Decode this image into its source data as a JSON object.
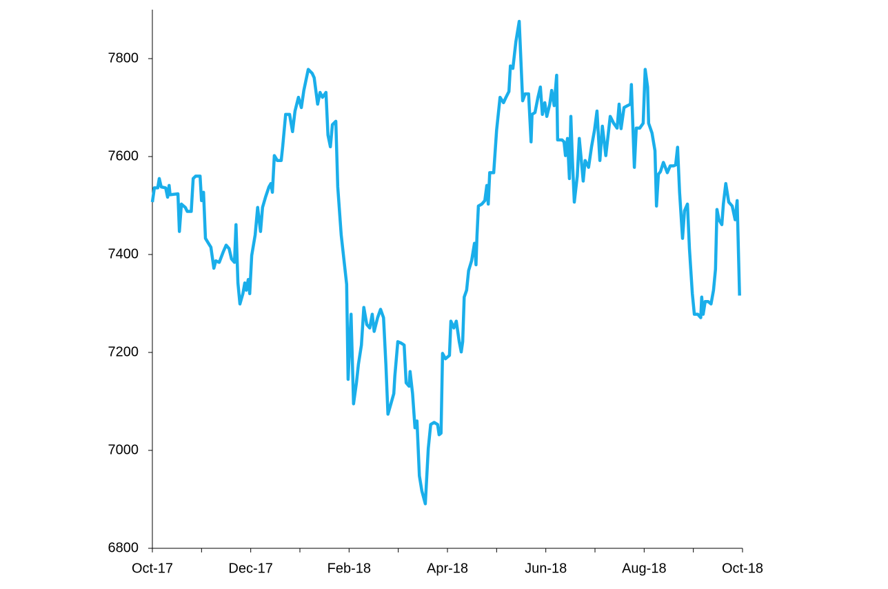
{
  "chart_data": {
    "type": "line",
    "series": [
      {
        "color": "#1aaeea",
        "x": [
          0.0,
          0.04,
          0.11,
          0.14,
          0.18,
          0.27,
          0.31,
          0.34,
          0.36,
          0.52,
          0.55,
          0.59,
          0.67,
          0.71,
          0.79,
          0.83,
          0.88,
          0.97,
          1.0,
          1.04,
          1.08,
          1.14,
          1.19,
          1.25,
          1.29,
          1.36,
          1.44,
          1.5,
          1.56,
          1.61,
          1.67,
          1.7,
          1.74,
          1.78,
          1.84,
          1.88,
          1.91,
          1.95,
          1.98,
          2.02,
          2.09,
          2.14,
          2.2,
          2.24,
          2.3,
          2.37,
          2.41,
          2.44,
          2.48,
          2.54,
          2.62,
          2.65,
          2.71,
          2.79,
          2.85,
          2.9,
          2.97,
          3.03,
          3.08,
          3.17,
          3.25,
          3.29,
          3.36,
          3.41,
          3.46,
          3.53,
          3.57,
          3.62,
          3.66,
          3.73,
          3.77,
          3.84,
          3.95,
          3.98,
          4.04,
          4.09,
          4.15,
          4.19,
          4.25,
          4.3,
          4.36,
          4.42,
          4.47,
          4.51,
          4.58,
          4.64,
          4.7,
          4.75,
          4.79,
          4.85,
          4.91,
          4.93,
          4.99,
          5.06,
          5.12,
          5.16,
          5.22,
          5.24,
          5.29,
          5.34,
          5.38,
          5.43,
          5.48,
          5.55,
          5.61,
          5.66,
          5.73,
          5.8,
          5.83,
          5.87,
          5.9,
          5.96,
          6.04,
          6.07,
          6.13,
          6.18,
          6.24,
          6.28,
          6.31,
          6.34,
          6.39,
          6.43,
          6.49,
          6.55,
          6.58,
          6.6,
          6.63,
          6.7,
          6.76,
          6.8,
          6.83,
          6.86,
          6.94,
          7.0,
          7.07,
          7.14,
          7.19,
          7.25,
          7.28,
          7.33,
          7.39,
          7.46,
          7.53,
          7.58,
          7.65,
          7.7,
          7.72,
          7.78,
          7.84,
          7.89,
          7.93,
          7.98,
          8.02,
          8.08,
          8.12,
          8.17,
          8.22,
          8.24,
          8.33,
          8.37,
          8.4,
          8.44,
          8.48,
          8.51,
          8.54,
          8.58,
          8.64,
          8.68,
          8.72,
          8.76,
          8.8,
          8.87,
          8.93,
          8.99,
          9.04,
          9.1,
          9.15,
          9.22,
          9.31,
          9.38,
          9.45,
          9.49,
          9.53,
          9.59,
          9.66,
          9.72,
          9.74,
          9.8,
          9.84,
          9.91,
          9.98,
          10.02,
          10.07,
          10.09,
          10.16,
          10.22,
          10.25,
          10.29,
          10.33,
          10.39,
          10.43,
          10.47,
          10.53,
          10.6,
          10.64,
          10.68,
          10.72,
          10.78,
          10.82,
          10.88,
          10.92,
          10.98,
          11.02,
          11.09,
          11.15,
          11.17,
          11.2,
          11.24,
          11.3,
          11.36,
          11.41,
          11.45,
          11.48,
          11.52,
          11.58,
          11.61,
          11.66,
          11.72,
          11.79,
          11.85,
          11.89,
          11.94
        ],
        "values": [
          7507,
          7536,
          7536,
          7555,
          7538,
          7536,
          7517,
          7541,
          7522,
          7524,
          7447,
          7503,
          7496,
          7488,
          7488,
          7555,
          7560,
          7560,
          7510,
          7527,
          7433,
          7423,
          7415,
          7372,
          7387,
          7384,
          7405,
          7419,
          7412,
          7391,
          7384,
          7461,
          7342,
          7299,
          7320,
          7342,
          7327,
          7349,
          7320,
          7398,
          7440,
          7496,
          7447,
          7496,
          7517,
          7538,
          7545,
          7527,
          7602,
          7592,
          7592,
          7620,
          7686,
          7686,
          7651,
          7693,
          7721,
          7700,
          7735,
          7778,
          7770,
          7761,
          7707,
          7731,
          7721,
          7731,
          7644,
          7620,
          7665,
          7672,
          7538,
          7440,
          7339,
          7145,
          7278,
          7095,
          7138,
          7176,
          7215,
          7292,
          7257,
          7250,
          7278,
          7243,
          7271,
          7288,
          7271,
          7173,
          7074,
          7095,
          7116,
          7152,
          7222,
          7219,
          7215,
          7138,
          7131,
          7161,
          7116,
          7046,
          7060,
          6948,
          6917,
          6891,
          7004,
          7053,
          7057,
          7053,
          7032,
          7035,
          7198,
          7187,
          7194,
          7264,
          7250,
          7264,
          7222,
          7201,
          7222,
          7313,
          7327,
          7367,
          7387,
          7423,
          7379,
          7437,
          7499,
          7503,
          7510,
          7541,
          7503,
          7567,
          7567,
          7654,
          7721,
          7710,
          7721,
          7733,
          7785,
          7780,
          7834,
          7876,
          7714,
          7728,
          7728,
          7630,
          7686,
          7690,
          7721,
          7742,
          7686,
          7710,
          7682,
          7707,
          7735,
          7704,
          7766,
          7634,
          7634,
          7630,
          7602,
          7637,
          7555,
          7682,
          7595,
          7507,
          7560,
          7637,
          7595,
          7550,
          7592,
          7578,
          7620,
          7654,
          7693,
          7592,
          7662,
          7602,
          7682,
          7668,
          7658,
          7707,
          7657,
          7700,
          7704,
          7707,
          7747,
          7578,
          7658,
          7658,
          7668,
          7778,
          7742,
          7668,
          7648,
          7612,
          7499,
          7564,
          7569,
          7588,
          7578,
          7567,
          7581,
          7581,
          7583,
          7619,
          7527,
          7433,
          7489,
          7503,
          7412,
          7320,
          7278,
          7278,
          7271,
          7313,
          7278,
          7304,
          7304,
          7299,
          7327,
          7370,
          7492,
          7471,
          7461,
          7503,
          7545,
          7507,
          7499,
          7471,
          7510,
          7316
        ]
      }
    ],
    "xlim": [
      0,
      12
    ],
    "xticks": [
      {
        "value": 0,
        "label": "Oct-17"
      },
      {
        "value": 2,
        "label": "Dec-17"
      },
      {
        "value": 4,
        "label": "Feb-18"
      },
      {
        "value": 6,
        "label": "Apr-18"
      },
      {
        "value": 8,
        "label": "Jun-18"
      },
      {
        "value": 10,
        "label": "Aug-18"
      },
      {
        "value": 12,
        "label": "Oct-18"
      }
    ],
    "xminorticks": [
      1,
      3,
      5,
      7,
      9,
      11
    ],
    "ylim": [
      6800,
      7900
    ],
    "yticks": [
      6800,
      7000,
      7200,
      7400,
      7600,
      7800
    ],
    "grid": false
  }
}
